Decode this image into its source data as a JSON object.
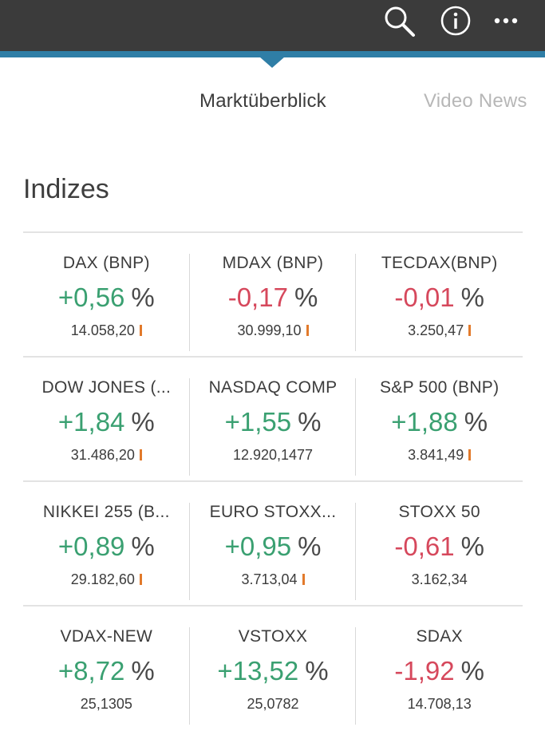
{
  "header": {
    "icons": [
      "search-icon",
      "info-icon",
      "more-icon"
    ]
  },
  "tabs": [
    {
      "label": "Marktüberblick",
      "active": true
    },
    {
      "label": "Video News",
      "active": false
    }
  ],
  "section": {
    "title": "Indizes"
  },
  "colors": {
    "topbar": "#3b3b3b",
    "accent": "#2f7ea6",
    "positive": "#3aa071",
    "negative": "#d6485c",
    "marker": "#e27a2b"
  },
  "indices": [
    [
      {
        "name": "DAX (BNP)",
        "change": "+0,56",
        "pct": "%",
        "value": "14.058,20",
        "direction": "up",
        "marker": true
      },
      {
        "name": "MDAX (BNP)",
        "change": "-0,17",
        "pct": "%",
        "value": "30.999,10",
        "direction": "down",
        "marker": true
      },
      {
        "name": "TECDAX(BNP)",
        "change": "-0,01",
        "pct": "%",
        "value": "3.250,47",
        "direction": "down",
        "marker": true
      }
    ],
    [
      {
        "name": "DOW JONES (...",
        "change": "+1,84",
        "pct": "%",
        "value": "31.486,20",
        "direction": "up",
        "marker": true
      },
      {
        "name": "NASDAQ COMP",
        "change": "+1,55",
        "pct": "%",
        "value": "12.920,1477",
        "direction": "up",
        "marker": false
      },
      {
        "name": "S&P 500 (BNP)",
        "change": "+1,88",
        "pct": "%",
        "value": "3.841,49",
        "direction": "up",
        "marker": true
      }
    ],
    [
      {
        "name": "NIKKEI 255 (B...",
        "change": "+0,89",
        "pct": "%",
        "value": "29.182,60",
        "direction": "up",
        "marker": true
      },
      {
        "name": "EURO STOXX...",
        "change": "+0,95",
        "pct": "%",
        "value": "3.713,04",
        "direction": "up",
        "marker": true
      },
      {
        "name": "STOXX 50",
        "change": "-0,61",
        "pct": "%",
        "value": "3.162,34",
        "direction": "down",
        "marker": false
      }
    ],
    [
      {
        "name": "VDAX-NEW",
        "change": "+8,72",
        "pct": "%",
        "value": "25,1305",
        "direction": "up",
        "marker": false
      },
      {
        "name": "VSTOXX",
        "change": "+13,52",
        "pct": "%",
        "value": "25,0782",
        "direction": "up",
        "marker": false
      },
      {
        "name": "SDAX",
        "change": "-1,92",
        "pct": "%",
        "value": "14.708,13",
        "direction": "down",
        "marker": false
      }
    ]
  ]
}
